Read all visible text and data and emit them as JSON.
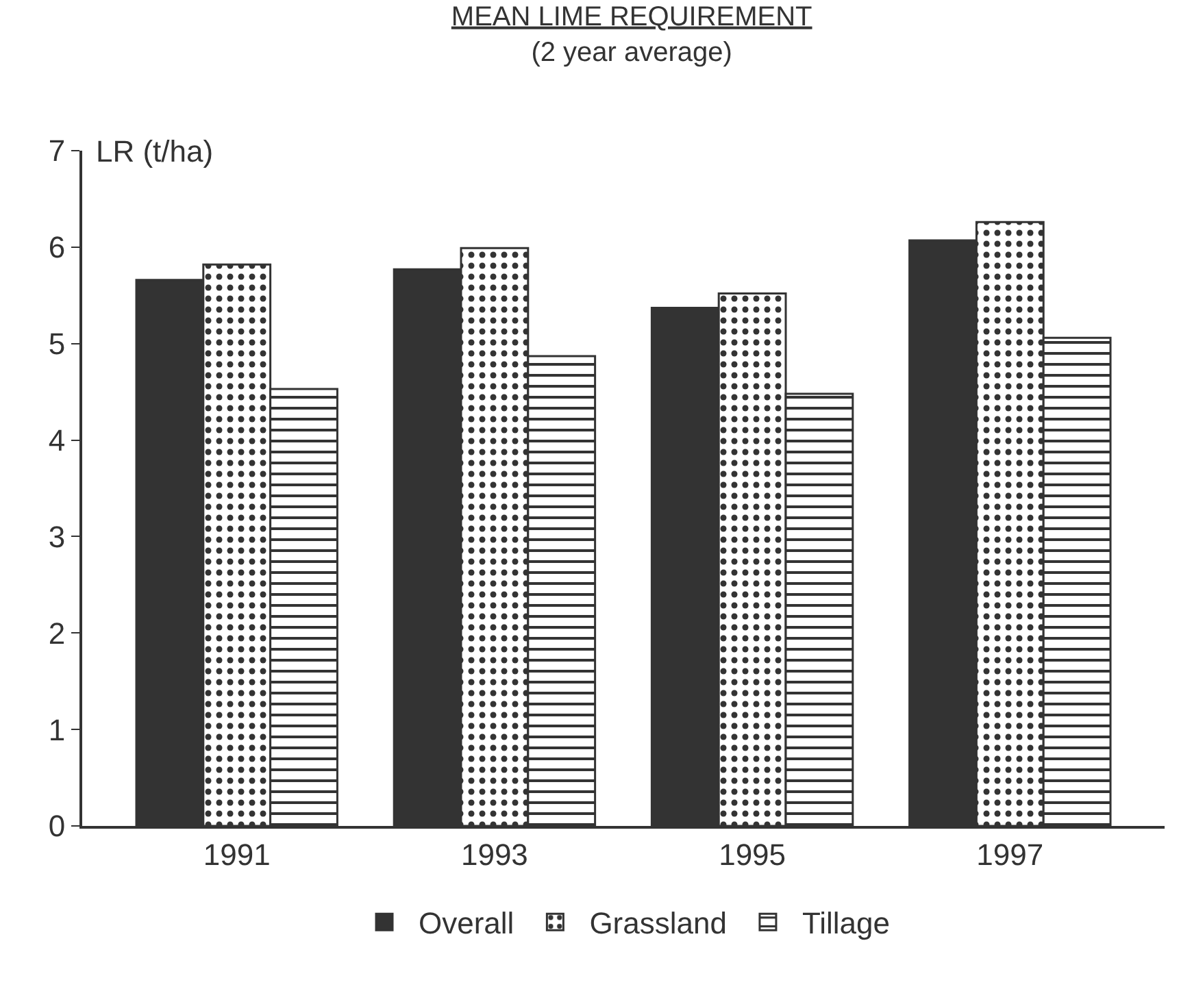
{
  "chart_data": {
    "type": "bar",
    "title": "MEAN LIME REQUIREMENT",
    "subtitle": "(2 year average)",
    "ylabel": "LR (t/ha)",
    "categories": [
      "1991",
      "1993",
      "1995",
      "1997"
    ],
    "series": [
      {
        "name": "Overall",
        "color": "#333333",
        "values": [
          5.66,
          5.77,
          5.37,
          6.07
        ]
      },
      {
        "name": "Grassland",
        "color": "#333333",
        "values": [
          5.82,
          5.99,
          5.52,
          6.26
        ]
      },
      {
        "name": "Tillage",
        "color": "#333333",
        "values": [
          4.53,
          4.87,
          4.48,
          5.06
        ]
      }
    ],
    "ylim": [
      0,
      7
    ],
    "yticks": [
      0,
      1,
      2,
      3,
      4,
      5,
      6,
      7
    ],
    "legend": "bottom"
  }
}
